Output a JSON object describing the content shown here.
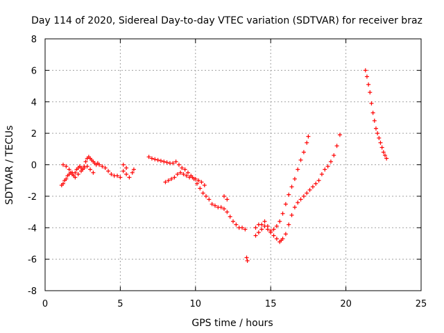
{
  "chart_data": {
    "type": "scatter",
    "title": "Day 114 of 2020, Sidereal Day-to-day VTEC variation (SDTVAR) for receiver braz",
    "xlabel": "GPS time / hours",
    "ylabel": "SDTVAR / TECUs",
    "xlim": [
      0,
      25
    ],
    "ylim": [
      -8,
      8
    ],
    "xticks": [
      0,
      5,
      10,
      15,
      20,
      25
    ],
    "yticks": [
      -8,
      -6,
      -4,
      -2,
      0,
      2,
      4,
      6,
      8
    ],
    "xtick_labels": [
      "0",
      "5",
      "10",
      "15",
      "20",
      "25"
    ],
    "ytick_labels": [
      "-8",
      "-6",
      "-4",
      "-2",
      "0",
      "2",
      "4",
      "6",
      "8"
    ],
    "grid": true,
    "marker": "+",
    "color": "#ff0000",
    "series": [
      {
        "name": "SDTVAR",
        "x": [
          1.1,
          1.2,
          1.3,
          1.4,
          1.5,
          1.6,
          1.7,
          1.8,
          1.9,
          2.0,
          2.1,
          2.2,
          2.3,
          2.4,
          2.5,
          2.6,
          2.7,
          2.8,
          2.9,
          3.0,
          3.1,
          3.2,
          3.3,
          3.4,
          3.5,
          3.6,
          3.8,
          4.0,
          4.2,
          4.4,
          4.6,
          4.8,
          5.0,
          1.2,
          1.4,
          1.6,
          1.8,
          2.0,
          2.2,
          2.4,
          2.6,
          2.8,
          3.0,
          3.2,
          5.2,
          5.4,
          5.6,
          5.8,
          5.9,
          5.2,
          5.4,
          6.9,
          7.1,
          7.3,
          7.5,
          7.7,
          7.9,
          8.1,
          8.3,
          8.5,
          8.7,
          8.9,
          9.1,
          9.3,
          9.5,
          9.7,
          9.9,
          10.1,
          10.3,
          10.5,
          10.7,
          10.9,
          11.1,
          11.3,
          11.5,
          11.7,
          11.9,
          12.1,
          12.3,
          12.5,
          12.7,
          12.9,
          13.1,
          13.3,
          8.0,
          8.2,
          8.4,
          8.6,
          8.8,
          9.0,
          9.2,
          9.4,
          9.6,
          9.8,
          10.0,
          10.2,
          10.4,
          10.6,
          11.9,
          12.1,
          13.4,
          13.45,
          14.0,
          14.2,
          14.4,
          14.6,
          14.8,
          15.0,
          15.2,
          15.4,
          15.6,
          15.7,
          15.8,
          16.0,
          16.2,
          16.4,
          16.6,
          16.8,
          17.0,
          17.2,
          17.4,
          17.6,
          17.8,
          18.0,
          18.2,
          18.4,
          18.6,
          18.8,
          19.0,
          19.2,
          19.4,
          19.6,
          14.0,
          14.2,
          14.4,
          14.6,
          14.8,
          15.0,
          15.2,
          15.4,
          15.6,
          15.8,
          16.0,
          16.2,
          16.4,
          16.6,
          16.8,
          17.0,
          17.2,
          17.4,
          17.5,
          21.3,
          21.4,
          21.5,
          21.6,
          21.7,
          21.8,
          21.9,
          22.0,
          22.1,
          22.2,
          22.3,
          22.4,
          22.5,
          22.6,
          22.7
        ],
        "y": [
          -1.3,
          -1.2,
          -1.0,
          -0.9,
          -0.7,
          -0.6,
          -0.5,
          -0.6,
          -0.7,
          -0.5,
          -0.3,
          -0.2,
          -0.1,
          -0.2,
          -0.3,
          -0.1,
          0.2,
          0.4,
          0.5,
          0.4,
          0.3,
          0.2,
          0.1,
          0.0,
          0.1,
          0.0,
          -0.1,
          -0.2,
          -0.4,
          -0.6,
          -0.7,
          -0.7,
          -0.8,
          0.0,
          -0.1,
          -0.3,
          -0.5,
          -0.8,
          -0.6,
          -0.4,
          -0.2,
          -0.1,
          -0.3,
          -0.5,
          -0.4,
          -0.6,
          -0.8,
          -0.5,
          -0.3,
          0.0,
          -0.2,
          0.5,
          0.4,
          0.35,
          0.3,
          0.25,
          0.2,
          0.15,
          0.1,
          0.1,
          0.2,
          0.0,
          -0.2,
          -0.3,
          -0.5,
          -0.7,
          -0.9,
          -1.2,
          -1.5,
          -1.8,
          -2.0,
          -2.2,
          -2.5,
          -2.6,
          -2.7,
          -2.7,
          -2.8,
          -3.0,
          -3.3,
          -3.6,
          -3.8,
          -4.0,
          -4.0,
          -4.1,
          -1.1,
          -1.0,
          -0.9,
          -0.8,
          -0.6,
          -0.5,
          -0.6,
          -0.7,
          -0.8,
          -0.8,
          -0.9,
          -1.0,
          -1.1,
          -1.3,
          -2.0,
          -2.2,
          -5.9,
          -6.1,
          -4.5,
          -4.3,
          -4.1,
          -3.9,
          -4.1,
          -4.3,
          -4.5,
          -4.7,
          -4.9,
          -4.8,
          -4.7,
          -4.4,
          -3.8,
          -3.2,
          -2.7,
          -2.4,
          -2.2,
          -2.0,
          -1.8,
          -1.6,
          -1.4,
          -1.2,
          -1.0,
          -0.6,
          -0.3,
          -0.1,
          0.2,
          0.6,
          1.2,
          1.9,
          -4.0,
          -3.8,
          -3.8,
          -3.6,
          -3.9,
          -4.2,
          -4.1,
          -3.9,
          -3.6,
          -3.1,
          -2.5,
          -1.9,
          -1.4,
          -0.9,
          -0.3,
          0.3,
          0.8,
          1.4,
          1.8,
          6.0,
          5.6,
          5.1,
          4.6,
          3.9,
          3.3,
          2.8,
          2.3,
          2.0,
          1.7,
          1.4,
          1.1,
          0.8,
          0.6,
          0.4
        ]
      }
    ]
  }
}
